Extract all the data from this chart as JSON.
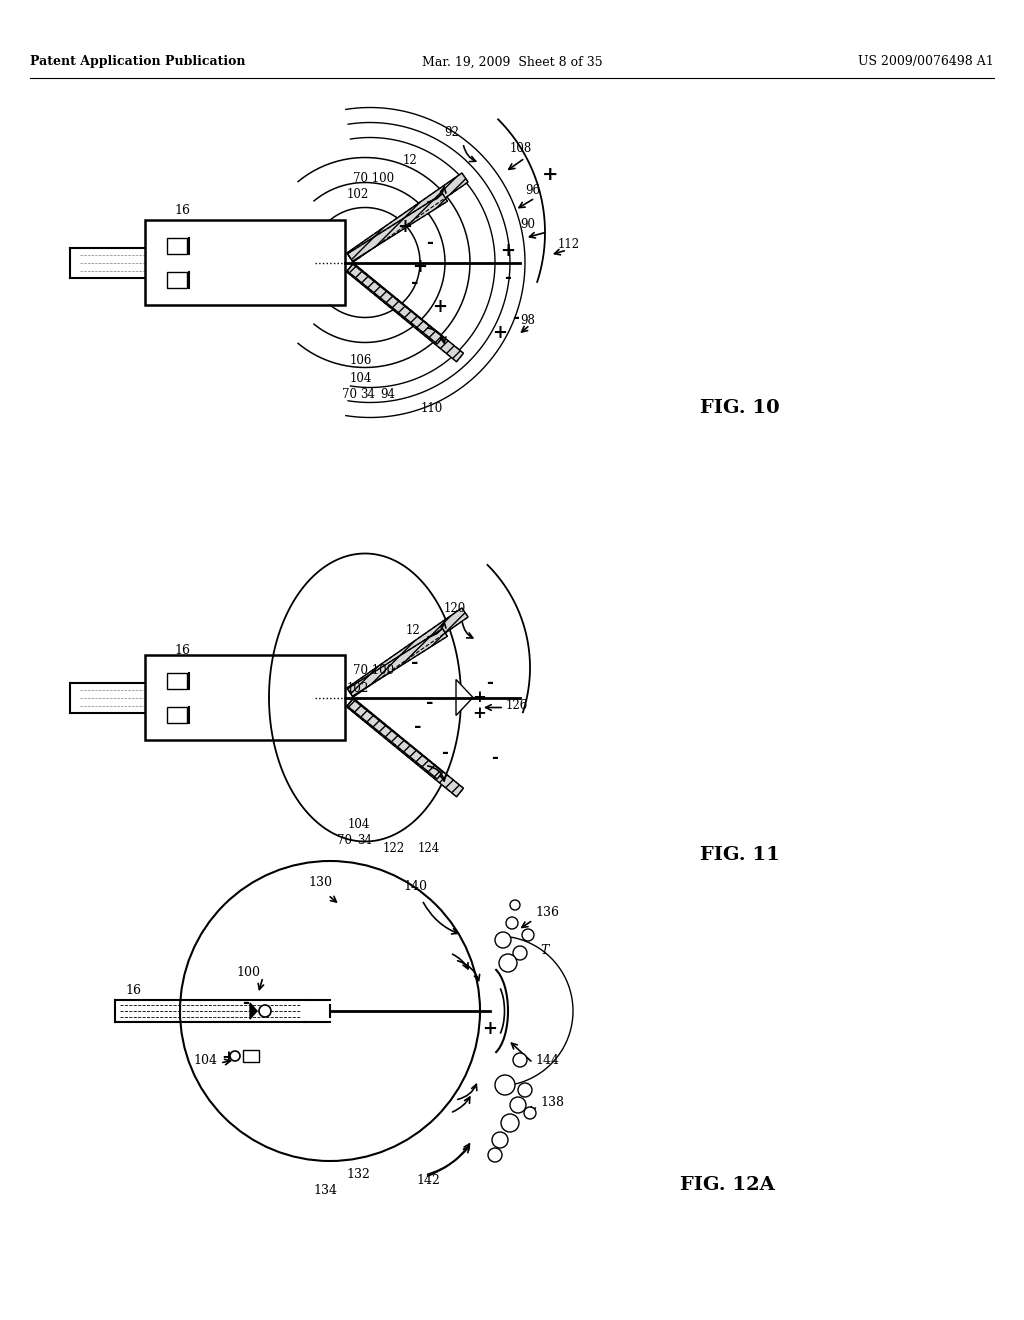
{
  "bg_color": "#ffffff",
  "page_width": 10.24,
  "page_height": 13.2,
  "header_left": "Patent Application Publication",
  "header_center": "Mar. 19, 2009  Sheet 8 of 35",
  "header_right": "US 2009/0076498 A1",
  "fig10_label": "FIG. 10",
  "fig11_label": "FIG. 11",
  "fig12a_label": "FIG. 12A"
}
